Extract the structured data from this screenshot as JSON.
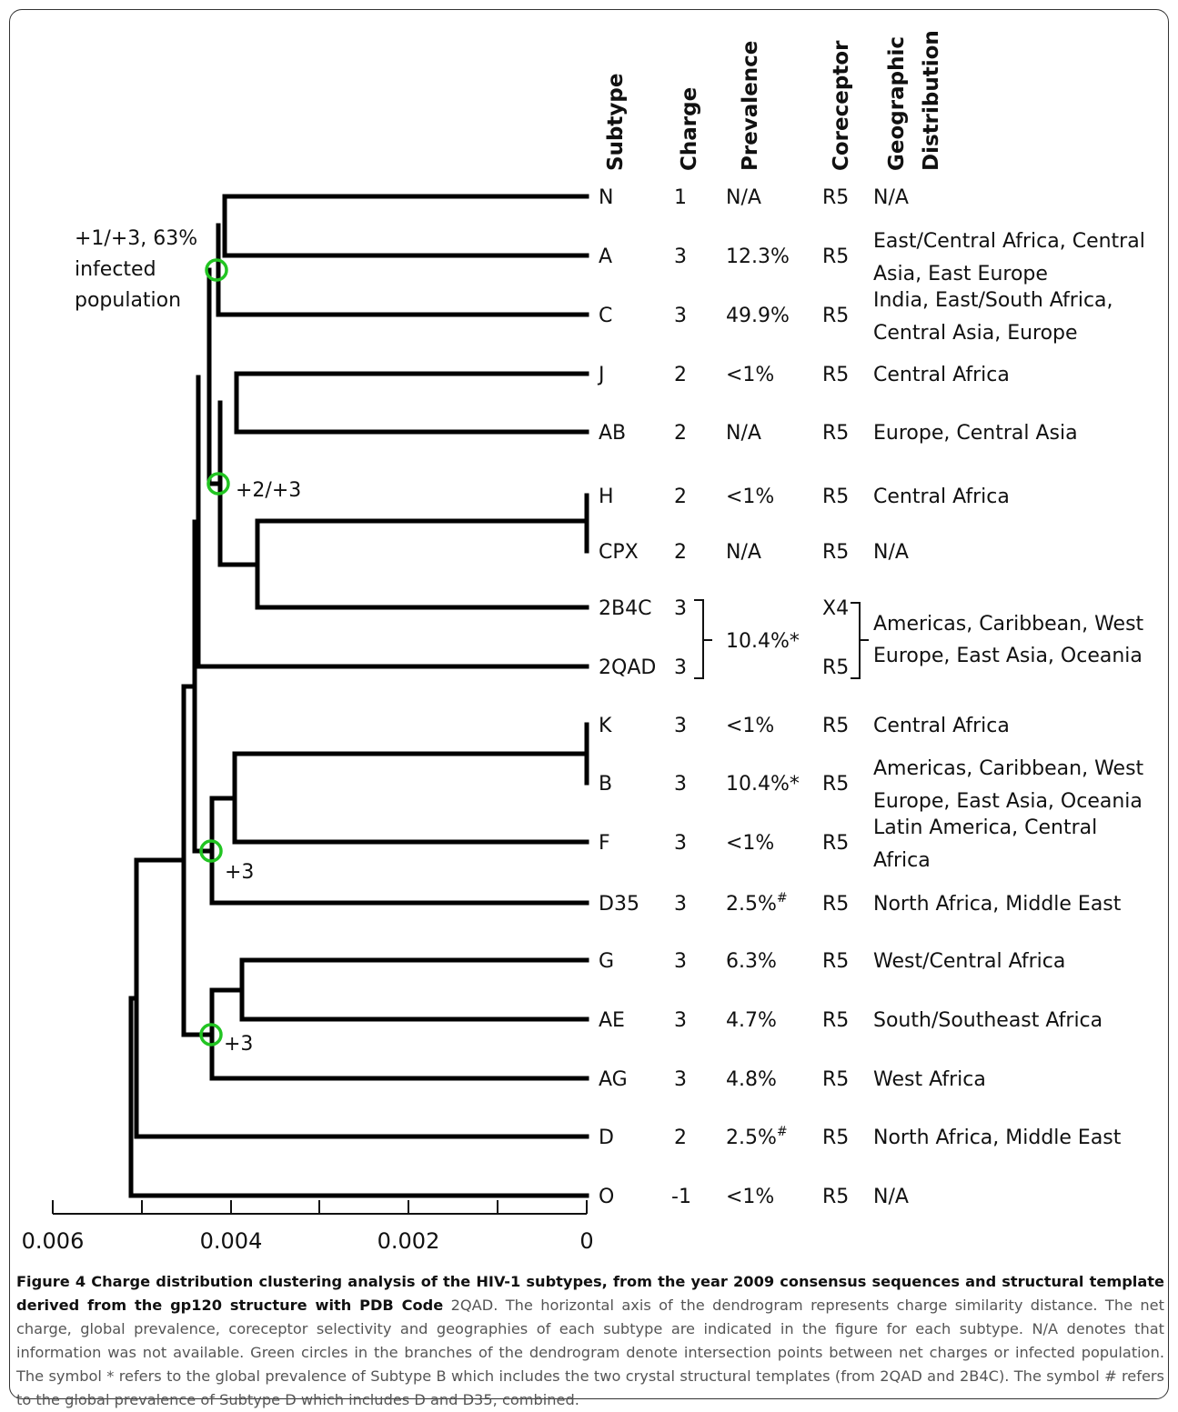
{
  "headers": {
    "subtype": "Subtype",
    "charge": "Charge",
    "prevalence": "Prevalence",
    "coreceptor": "Coreceptor",
    "geographic_line1": "Geographic",
    "geographic_line2": "Distribution"
  },
  "rows": [
    {
      "subtype": "N",
      "charge": "1",
      "prevalence": "N/A",
      "coreceptor": "R5",
      "geo": [
        "N/A"
      ]
    },
    {
      "subtype": "A",
      "charge": "3",
      "prevalence": "12.3%",
      "coreceptor": "R5",
      "geo": [
        "East/Central Africa, Central",
        "Asia, East Europe"
      ]
    },
    {
      "subtype": "C",
      "charge": "3",
      "prevalence": "49.9%",
      "coreceptor": "R5",
      "geo": [
        "India, East/South Africa,",
        "Central Asia, Europe"
      ]
    },
    {
      "subtype": "J",
      "charge": "2",
      "prevalence": "<1%",
      "coreceptor": "R5",
      "geo": [
        "Central Africa"
      ]
    },
    {
      "subtype": "AB",
      "charge": "2",
      "prevalence": "N/A",
      "coreceptor": "R5",
      "geo": [
        "Europe, Central Asia"
      ]
    },
    {
      "subtype": "H",
      "charge": "2",
      "prevalence": "<1%",
      "coreceptor": "R5",
      "geo": [
        "Central Africa"
      ]
    },
    {
      "subtype": "CPX",
      "charge": "2",
      "prevalence": "N/A",
      "coreceptor": "R5",
      "geo": [
        "N/A"
      ]
    },
    {
      "subtype": "2B4C",
      "charge": "3",
      "prevalence": "",
      "coreceptor": "X4",
      "geo": []
    },
    {
      "subtype": "2QAD",
      "charge": "3",
      "prevalence": "",
      "coreceptor": "R5",
      "geo": []
    },
    {
      "subtype": "K",
      "charge": "3",
      "prevalence": "<1%",
      "coreceptor": "R5",
      "geo": [
        "Central Africa"
      ]
    },
    {
      "subtype": "B",
      "charge": "3",
      "prevalence": "10.4%*",
      "coreceptor": "R5",
      "geo": [
        "Americas, Caribbean, West",
        "Europe, East Asia, Oceania"
      ]
    },
    {
      "subtype": "F",
      "charge": "3",
      "prevalence": "<1%",
      "coreceptor": "R5",
      "geo": [
        "Latin America, Central",
        "Africa"
      ]
    },
    {
      "subtype": "D35",
      "charge": "3",
      "prevalence": "2.5%#",
      "coreceptor": "R5",
      "geo": [
        "North Africa, Middle East"
      ]
    },
    {
      "subtype": "G",
      "charge": "3",
      "prevalence": "6.3%",
      "coreceptor": "R5",
      "geo": [
        "West/Central Africa"
      ]
    },
    {
      "subtype": "AE",
      "charge": "3",
      "prevalence": "4.7%",
      "coreceptor": "R5",
      "geo": [
        "South/Southeast Africa"
      ]
    },
    {
      "subtype": "AG",
      "charge": "3",
      "prevalence": "4.8%",
      "coreceptor": "R5",
      "geo": [
        "West Africa"
      ]
    },
    {
      "subtype": "D",
      "charge": "2",
      "prevalence": "2.5%#",
      "coreceptor": "R5",
      "geo": [
        "North Africa, Middle East"
      ]
    },
    {
      "subtype": "O",
      "charge": "-1",
      "prevalence": "<1%",
      "coreceptor": "R5",
      "geo": [
        "N/A"
      ]
    }
  ],
  "merged": {
    "prevalence": "10.4%*",
    "geo": [
      "Americas, Caribbean, West",
      "Europe, East Asia, Oceania"
    ]
  },
  "annotations": {
    "top_line1": "+1/+3, 63%",
    "top_line2": "infected",
    "top_line3": "population",
    "mid": "+2/+3",
    "lower1": "+3",
    "lower2": "+3"
  },
  "axis": {
    "ticks": [
      "0.006",
      "0.004",
      "0.002",
      "0"
    ]
  },
  "caption": {
    "label": "Figure 4",
    "title": "Charge distribution clustering analysis of the HIV-1 subtypes, from the year 2009 consensus sequences and structural template derived from the gp120 structure with PDB Code",
    "pdb": "2QAD.",
    "body": "The horizontal axis of the dendrogram represents charge similarity distance. The net charge, global prevalence, coreceptor selectivity and geographies of each subtype are indicated in the figure for each subtype. N/A denotes that information was not available. Green circles in the branches of the dendrogram denote intersection points between net charges or infected population. The symbol * refers to the global prevalence of Subtype B which includes the two crystal structural templates (from 2QAD and 2B4C). The symbol # refers to the global prevalence of Subtype D which includes D and D35, combined."
  },
  "colors": {
    "branch": "#000000",
    "circle": "#22c422",
    "caption_text": "#555555"
  }
}
